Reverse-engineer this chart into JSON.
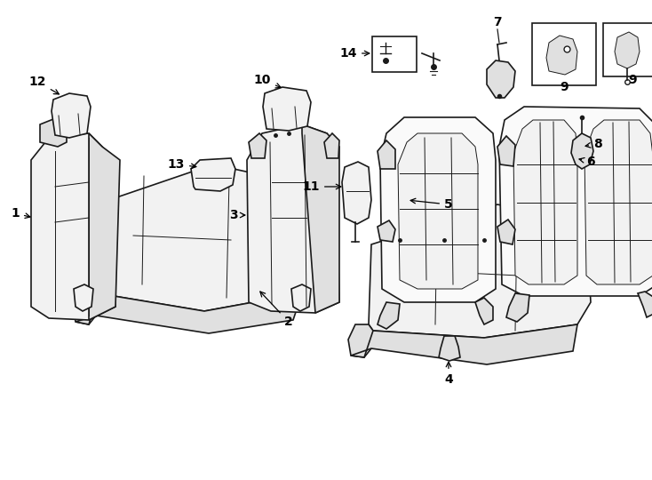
{
  "bg_color": "#ffffff",
  "line_color": "#1a1a1a",
  "fill_light": "#f2f2f2",
  "fill_mid": "#e0e0e0",
  "fill_dark": "#c8c8c8",
  "lw_main": 1.2,
  "lw_seam": 0.7,
  "fs_label": 10,
  "fig_w": 7.34,
  "fig_h": 5.4
}
